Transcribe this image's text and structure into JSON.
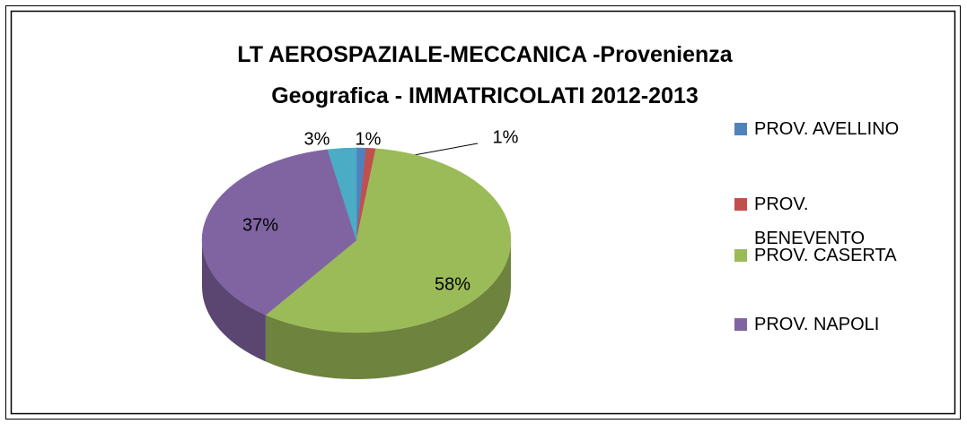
{
  "chart_data": {
    "type": "pie",
    "title": "LT AEROSPAZIALE-MECCANICA -Provenienza Geografica - IMMATRICOLATI 2012-2013",
    "categories": [
      "PROV. AVELLINO",
      "PROV. BENEVENTO",
      "PROV. CASERTA",
      "PROV. NAPOLI",
      null
    ],
    "values": [
      1,
      1,
      58,
      37,
      3
    ],
    "value_labels": [
      "1%",
      "1%",
      "58%",
      "37%",
      "3%"
    ],
    "colors": [
      "#4f81bd",
      "#c0504d",
      "#9bbb59",
      "#8064a2",
      "#4bacc6"
    ],
    "legend": "right"
  }
}
